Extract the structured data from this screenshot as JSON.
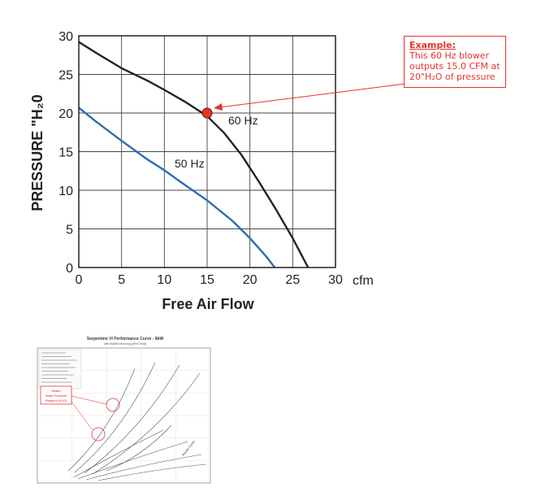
{
  "chart_data": [
    {
      "type": "line",
      "title": "",
      "xlabel": "Free Air Flow",
      "ylabel": "PRESSURE \"H₂0",
      "x_unit": "cfm",
      "xlim": [
        0,
        30
      ],
      "ylim": [
        0,
        30
      ],
      "x_ticks": [
        0,
        5,
        10,
        15,
        20,
        25,
        30
      ],
      "y_ticks": [
        0,
        5,
        10,
        15,
        20,
        25,
        30
      ],
      "grid": true,
      "series": [
        {
          "name": "60 Hz",
          "color": "#222222",
          "points": [
            [
              0,
              29.2
            ],
            [
              2,
              27.8
            ],
            [
              5,
              25.8
            ],
            [
              8,
              24.2
            ],
            [
              10,
              23.0
            ],
            [
              12.5,
              21.4
            ],
            [
              15,
              19.6
            ],
            [
              17,
              17.4
            ],
            [
              19,
              14.6
            ],
            [
              21,
              11.2
            ],
            [
              23,
              7.6
            ],
            [
              25,
              3.8
            ],
            [
              26.8,
              0
            ]
          ]
        },
        {
          "name": "50 Hz",
          "color": "#2a6db5",
          "points": [
            [
              0,
              20.7
            ],
            [
              2,
              18.9
            ],
            [
              5,
              16.4
            ],
            [
              8,
              14.0
            ],
            [
              10,
              12.6
            ],
            [
              12,
              11.0
            ],
            [
              15,
              8.7
            ],
            [
              18,
              6.0
            ],
            [
              20,
              3.8
            ],
            [
              22,
              1.3
            ],
            [
              22.9,
              0
            ]
          ]
        }
      ],
      "highlight_point": {
        "x": 15,
        "y": 20,
        "color": "#e8332a"
      },
      "annotations": [
        "60 Hz",
        "50 Hz"
      ]
    },
    {
      "type": "line",
      "title": "Serpentine VI Performance Curve - 8kW",
      "subtitle": "with Baffled Housing (#P/S7508)",
      "callout": [
        "Heater",
        "Static Pressure",
        "Readout (H₂O)"
      ],
      "annotation": "Blower Curve",
      "grid": true
    }
  ],
  "callout": {
    "title": "Example:",
    "lines": [
      "This 60 Hz blower",
      "outputs 15.0 CFM at",
      "20\"H₂O of pressure"
    ],
    "color": "#e8332a"
  }
}
